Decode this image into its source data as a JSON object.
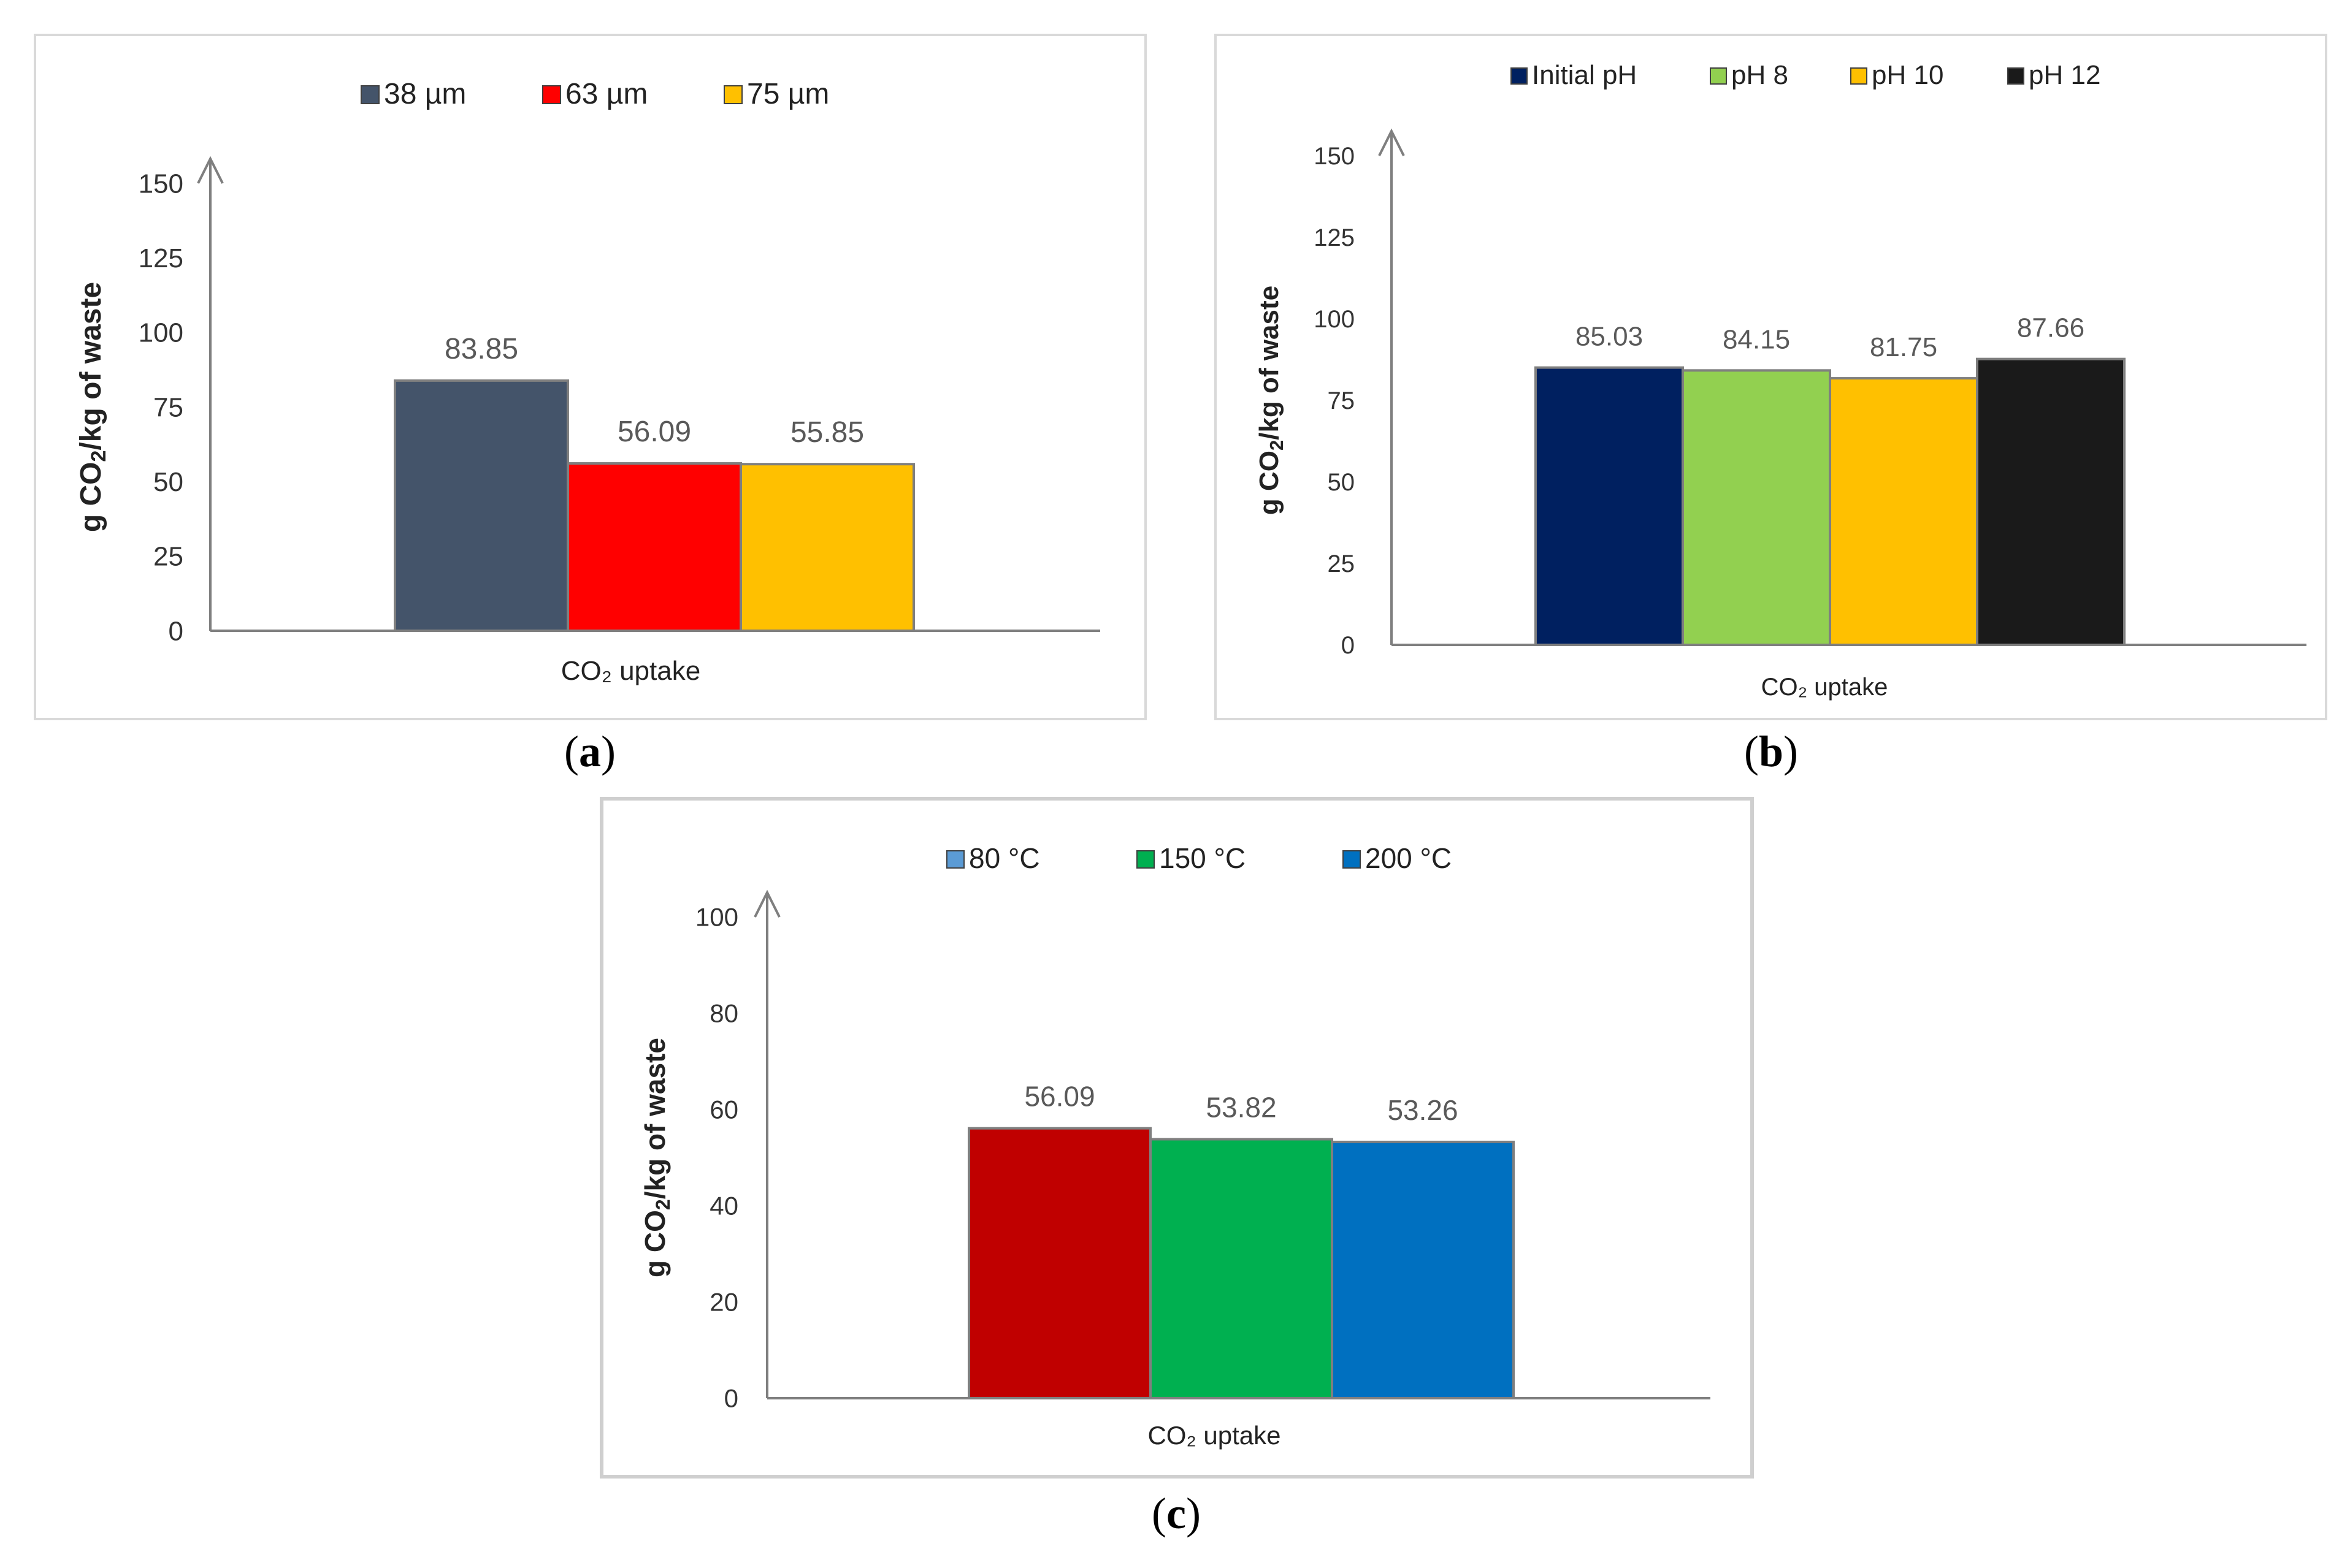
{
  "chart_data": [
    {
      "id": "a",
      "type": "bar",
      "ylabel": "g CO2/kg of waste",
      "xlabel": "CO₂ uptake",
      "ylim": [
        0,
        150
      ],
      "yticks": [
        0,
        25,
        50,
        75,
        100,
        125,
        150
      ],
      "categories": [
        "CO₂ uptake"
      ],
      "series": [
        {
          "name": "38 µm",
          "values": [
            83.85
          ],
          "label": "83.85",
          "color": "#44546A"
        },
        {
          "name": "63 µm",
          "values": [
            56.09
          ],
          "label": "56.09",
          "color": "#FF0000"
        },
        {
          "name": "75 µm",
          "values": [
            55.85
          ],
          "label": "55.85",
          "color": "#FFC000"
        }
      ],
      "legend_position": "top",
      "caption_letter": "a"
    },
    {
      "id": "b",
      "type": "bar",
      "ylabel": "g CO2/kg  of waste",
      "xlabel": "CO₂ uptake",
      "ylim": [
        0,
        150
      ],
      "yticks": [
        0,
        25,
        50,
        75,
        100,
        125,
        150
      ],
      "categories": [
        "CO₂ uptake"
      ],
      "series": [
        {
          "name": "Initial pH",
          "values": [
            85.03
          ],
          "label": "85.03",
          "color": "#002060"
        },
        {
          "name": "pH 8",
          "values": [
            84.15
          ],
          "label": "84.15",
          "color": "#92D050"
        },
        {
          "name": "pH 10",
          "values": [
            81.75
          ],
          "label": "81.75",
          "color": "#FFC000"
        },
        {
          "name": "pH 12",
          "values": [
            87.66
          ],
          "label": "87.66",
          "color": "#1A1A1A"
        }
      ],
      "legend_position": "top",
      "caption_letter": "b"
    },
    {
      "id": "c",
      "type": "bar",
      "ylabel": "g CO2/kg  of waste",
      "xlabel": "CO₂ uptake",
      "ylim": [
        0,
        100
      ],
      "yticks": [
        0,
        20,
        40,
        60,
        80,
        100
      ],
      "categories": [
        "CO₂ uptake"
      ],
      "series": [
        {
          "name": "80 °C",
          "values": [
            56.09
          ],
          "label": "56.09",
          "color": "#C00000",
          "legend_color": "#5B9BD5"
        },
        {
          "name": "150 °C",
          "values": [
            53.82
          ],
          "label": "53.82",
          "color": "#00B050",
          "legend_color": "#00B050"
        },
        {
          "name": "200 °C",
          "values": [
            53.26
          ],
          "label": "53.26",
          "color": "#0070C0",
          "legend_color": "#0070C0"
        }
      ],
      "legend_position": "top",
      "caption_letter": "c"
    }
  ]
}
